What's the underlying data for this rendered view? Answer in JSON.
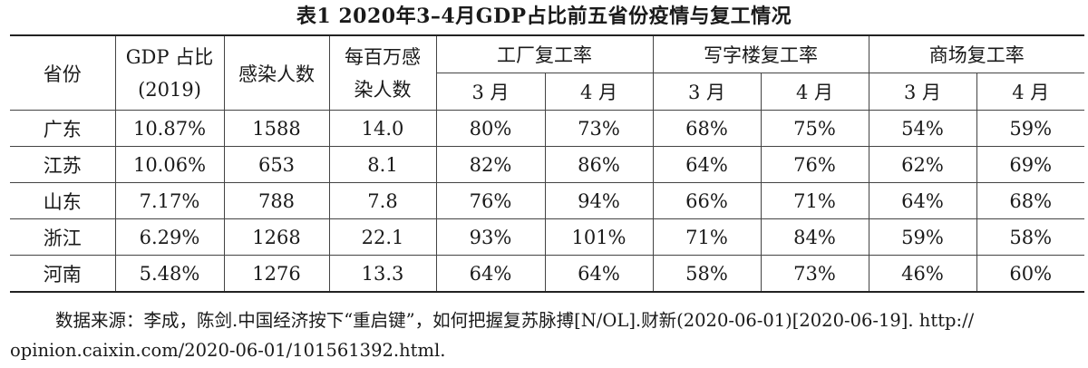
{
  "title": "表1 2020年3–4月GDP占比前五省份疫情与复工情况",
  "header": {
    "province": "省份",
    "gdp_share_line1": "GDP 占比",
    "gdp_share_line2": "(2019)",
    "infections": "感染人数",
    "per_million_line1": "每百万感",
    "per_million_line2": "染人数",
    "groups": [
      "工厂复工率",
      "写字楼复工率",
      "商场复工率"
    ],
    "months": [
      "3 月",
      "4 月",
      "3 月",
      "4 月",
      "3 月",
      "4 月"
    ]
  },
  "rows": [
    {
      "province": "广东",
      "gdp": "10.87%",
      "infections": "1588",
      "per_million": "14.0",
      "factory_mar": "80%",
      "factory_apr": "73%",
      "office_mar": "68%",
      "office_apr": "75%",
      "mall_mar": "54%",
      "mall_apr": "59%"
    },
    {
      "province": "江苏",
      "gdp": "10.06%",
      "infections": "653",
      "per_million": "8.1",
      "factory_mar": "82%",
      "factory_apr": "86%",
      "office_mar": "64%",
      "office_apr": "76%",
      "mall_mar": "62%",
      "mall_apr": "69%"
    },
    {
      "province": "山东",
      "gdp": "7.17%",
      "infections": "788",
      "per_million": "7.8",
      "factory_mar": "76%",
      "factory_apr": "94%",
      "office_mar": "66%",
      "office_apr": "71%",
      "mall_mar": "64%",
      "mall_apr": "68%"
    },
    {
      "province": "浙江",
      "gdp": "6.29%",
      "infections": "1268",
      "per_million": "22.1",
      "factory_mar": "93%",
      "factory_apr": "101%",
      "office_mar": "71%",
      "office_apr": "84%",
      "mall_mar": "59%",
      "mall_apr": "58%"
    },
    {
      "province": "河南",
      "gdp": "5.48%",
      "infections": "1276",
      "per_million": "13.3",
      "factory_mar": "64%",
      "factory_apr": "64%",
      "office_mar": "58%",
      "office_apr": "73%",
      "mall_mar": "46%",
      "mall_apr": "60%"
    }
  ],
  "source_note": {
    "line1": "数据来源：李成，陈剑.中国经济按下“重启键”，如何把握复苏脉搏[N/OL].财新(2020-06-01)[2020-06-19]. http://",
    "line2": "opinion.caixin.com/2020-06-01/101561392.html."
  }
}
